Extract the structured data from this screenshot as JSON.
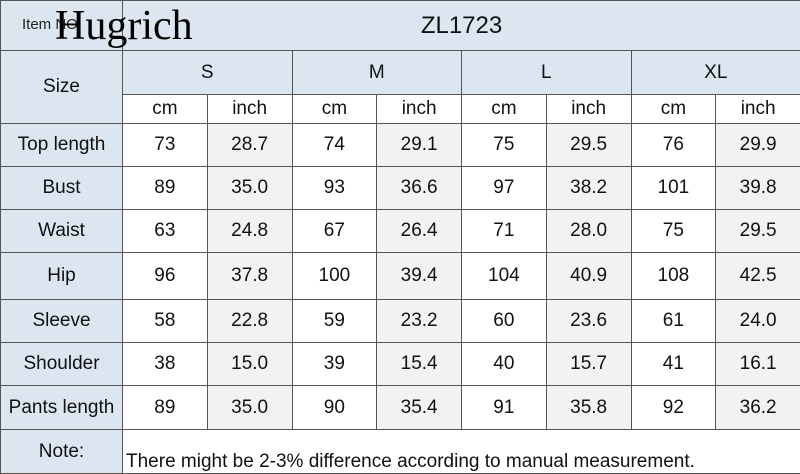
{
  "header": {
    "item_label": "Item NO",
    "brand": "Hugrich",
    "model": "ZL1723"
  },
  "table": {
    "size_label": "Size",
    "sizes": [
      "S",
      "M",
      "L",
      "XL"
    ],
    "units": [
      "cm",
      "inch",
      "cm",
      "inch",
      "cm",
      "inch",
      "cm",
      "inch"
    ],
    "rows": [
      {
        "label": "Top  length",
        "values": [
          "73",
          "28.7",
          "74",
          "29.1",
          "75",
          "29.5",
          "76",
          "29.9"
        ]
      },
      {
        "label": "Bust",
        "values": [
          "89",
          "35.0",
          "93",
          "36.6",
          "97",
          "38.2",
          "101",
          "39.8"
        ]
      },
      {
        "label": "Waist",
        "values": [
          "63",
          "24.8",
          "67",
          "26.4",
          "71",
          "28.0",
          "75",
          "29.5"
        ]
      },
      {
        "label": "Hip",
        "values": [
          "96",
          "37.8",
          "100",
          "39.4",
          "104",
          "40.9",
          "108",
          "42.5"
        ]
      },
      {
        "label": "Sleeve",
        "values": [
          "58",
          "22.8",
          "59",
          "23.2",
          "60",
          "23.6",
          "61",
          "24.0"
        ]
      },
      {
        "label": "Shoulder",
        "values": [
          "38",
          "15.0",
          "39",
          "15.4",
          "40",
          "15.7",
          "41",
          "16.1"
        ]
      },
      {
        "label": "Pants length",
        "values": [
          "89",
          "35.0",
          "90",
          "35.4",
          "91",
          "35.8",
          "92",
          "36.2"
        ]
      }
    ],
    "note_label": "Note:",
    "note": "There might be 2-3% difference according to manual measurement."
  }
}
